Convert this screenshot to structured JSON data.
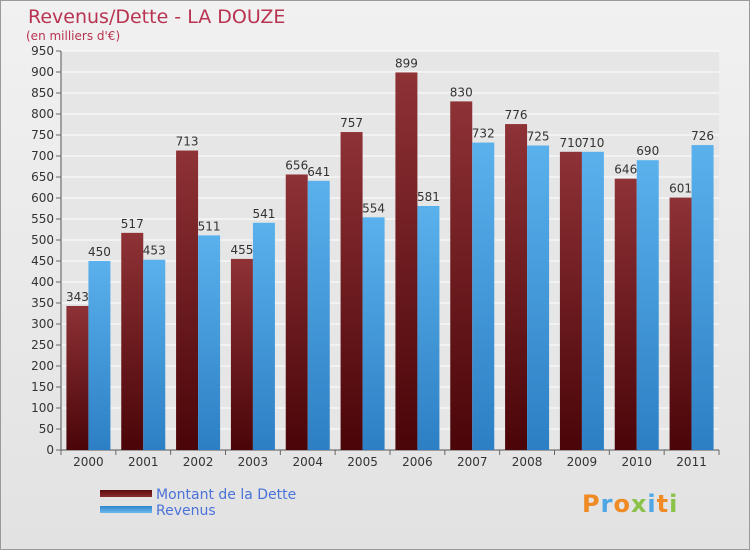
{
  "chart_data": {
    "type": "bar",
    "title": "Revenus/Dette - LA DOUZE",
    "subtitle": "(en milliers d'€)",
    "categories": [
      "2000",
      "2001",
      "2002",
      "2003",
      "2004",
      "2005",
      "2006",
      "2007",
      "2008",
      "2009",
      "2010",
      "2011"
    ],
    "series": [
      {
        "name": "Montant de la Dette",
        "values": [
          343,
          517,
          713,
          455,
          656,
          757,
          899,
          830,
          776,
          710,
          646,
          601
        ],
        "color": "#7a2a2d"
      },
      {
        "name": "Revenus",
        "values": [
          450,
          453,
          511,
          541,
          641,
          554,
          581,
          732,
          725,
          710,
          690,
          726
        ],
        "color": "#4ea6e4"
      }
    ],
    "ylim": [
      0,
      950
    ],
    "yticks": [
      0,
      50,
      100,
      150,
      200,
      250,
      300,
      350,
      400,
      450,
      500,
      550,
      600,
      650,
      700,
      750,
      800,
      850,
      900,
      950
    ],
    "grid": true,
    "legend_position": "bottom-left",
    "data_labels": true
  },
  "logo": {
    "letters": [
      "P",
      "r",
      "o",
      "x",
      "i",
      "t",
      "i"
    ],
    "colors": [
      "#f08a24",
      "#4ea6e4",
      "#f08a24",
      "#8bc34a",
      "#4ea6e4",
      "#f08a24",
      "#8bc34a"
    ]
  }
}
